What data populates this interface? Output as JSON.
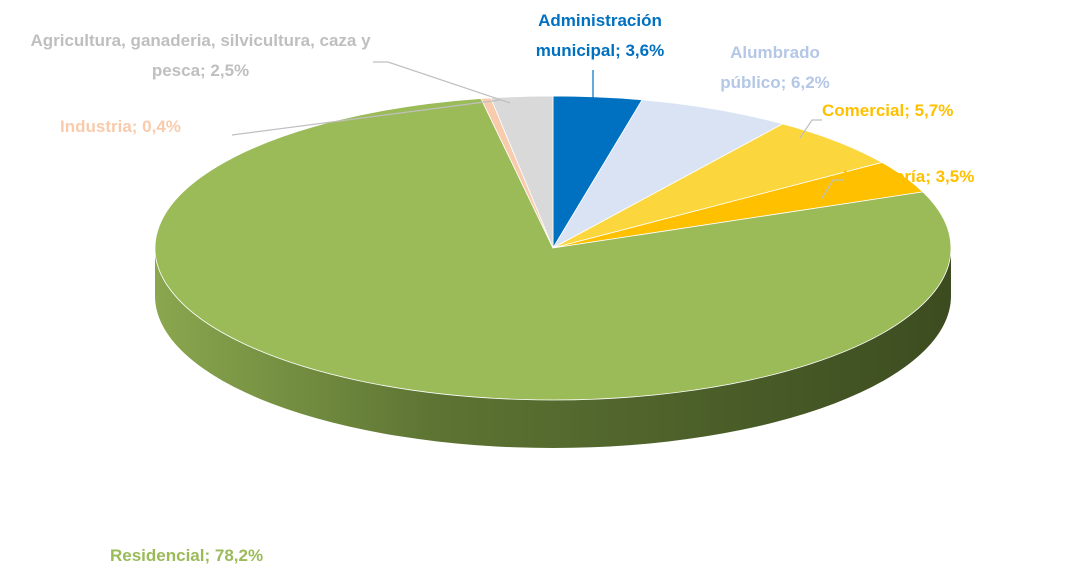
{
  "chart_data": {
    "type": "pie3d",
    "labels": [
      "Administración municipal; 3,6%",
      "Alumbrado público; 6,2%",
      "Comercial; 5,7%",
      "Hostelería; 3,5%",
      "Residencial; 78,2%",
      "Industria; 0,4%",
      "Agricultura, ganaderia, silvicultura, caza y pesca; 2,5%"
    ],
    "values": [
      3.6,
      6.2,
      5.7,
      3.5,
      78.2,
      0.4,
      2.5
    ],
    "colors": [
      "#0070c0",
      "#dae3f3",
      "#fbd63c",
      "#ffc000",
      "#9bbb59",
      "#f8cbad",
      "#d9d9d9"
    ],
    "label_colors": [
      "#0070c0",
      "#b4c7e7",
      "#ffc000",
      "#ffc000",
      "#9bbb59",
      "#f8cbad",
      "#bfbfbf"
    ]
  }
}
